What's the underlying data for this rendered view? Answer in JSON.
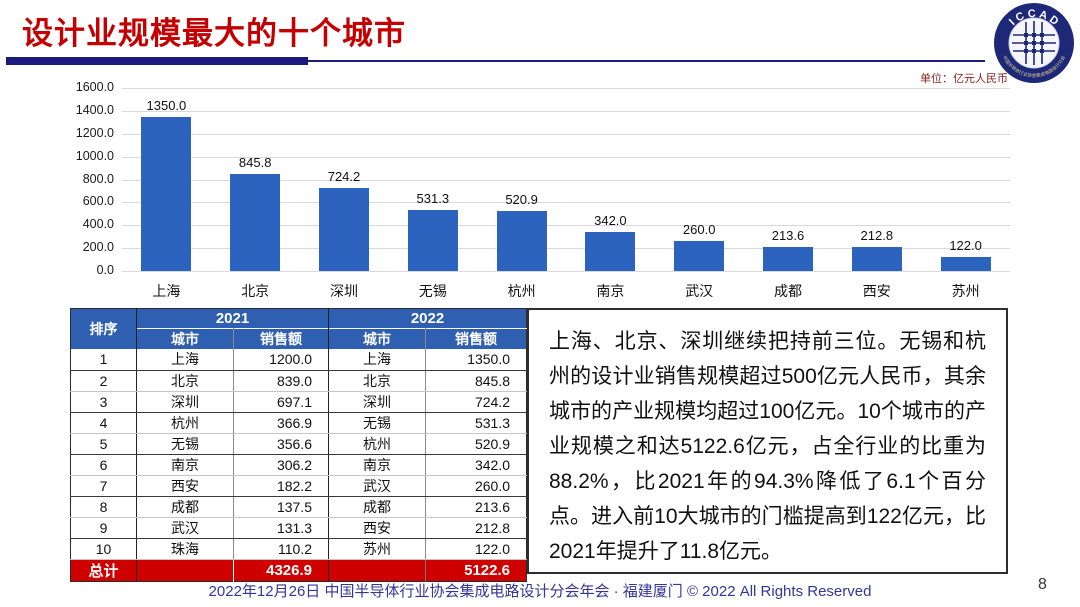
{
  "header": {
    "title": "设计业规模最大的十个城市"
  },
  "logo": {
    "name": "I C C A D",
    "ring_text": "中国半导体行业协会集成电路设计分会"
  },
  "unit_label": "单位：亿元人民币",
  "chart_data": {
    "type": "bar",
    "title": "",
    "xlabel": "",
    "ylabel": "",
    "categories": [
      "上海",
      "北京",
      "深圳",
      "无锡",
      "杭州",
      "南京",
      "武汉",
      "成都",
      "西安",
      "苏州"
    ],
    "values": [
      1350.0,
      845.8,
      724.2,
      531.3,
      520.9,
      342.0,
      260.0,
      213.6,
      212.8,
      122.0
    ],
    "ylim": [
      0,
      1600
    ],
    "ytick_step": 200,
    "grid": true,
    "legend": "none",
    "bar_color": "#2B63BE"
  },
  "table": {
    "header": {
      "rank": "排序",
      "years": [
        "2021",
        "2022"
      ],
      "subcolumns": [
        "城市",
        "销售额"
      ]
    },
    "rows": [
      [
        "1",
        "上海",
        "1200.0",
        "上海",
        "1350.0"
      ],
      [
        "2",
        "北京",
        "839.0",
        "北京",
        "845.8"
      ],
      [
        "3",
        "深圳",
        "697.1",
        "深圳",
        "724.2"
      ],
      [
        "4",
        "杭州",
        "366.9",
        "无锡",
        "531.3"
      ],
      [
        "5",
        "无锡",
        "356.6",
        "杭州",
        "520.9"
      ],
      [
        "6",
        "南京",
        "306.2",
        "南京",
        "342.0"
      ],
      [
        "7",
        "西安",
        "182.2",
        "武汉",
        "260.0"
      ],
      [
        "8",
        "成都",
        "137.5",
        "成都",
        "213.6"
      ],
      [
        "9",
        "武汉",
        "131.3",
        "西安",
        "212.8"
      ],
      [
        "10",
        "珠海",
        "110.2",
        "苏州",
        "122.0"
      ]
    ],
    "total": [
      "总计",
      "",
      "4326.9",
      "",
      "5122.6"
    ]
  },
  "analysis": {
    "text": "上海、北京、深圳继续把持前三位。无锡和杭州的设计业销售规模超过500亿元人民币，其余城市的产业规模均超过100亿元。10个城市的产业规模之和达5122.6亿元，占全行业的比重为88.2%，比2021年的94.3%降低了6.1个百分点。进入前10大城市的门槛提高到122亿元，比2021年提升了11.8亿元。"
  },
  "footer": {
    "text": "2022年12月26日 中国半导体行业协会集成电路设计分会年会 · 福建厦门 © 2022 All Rights Reserved",
    "page_number": "8"
  },
  "colors": {
    "bar_blue": "#2B63BE",
    "table_header_blue": "#2E5FB0",
    "total_row_red": "#CE0000",
    "title_red": "#C40000",
    "rule_navy": "#1B1B7E",
    "footer_navy": "#34349B"
  }
}
